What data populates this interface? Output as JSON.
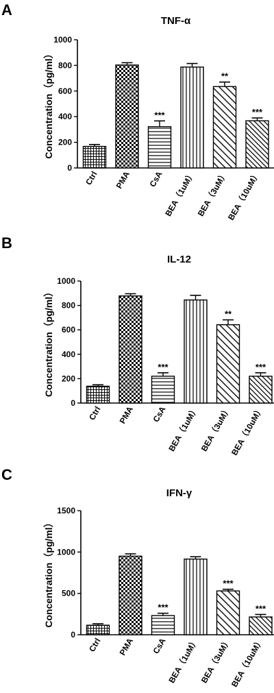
{
  "chart_data": [
    {
      "type": "bar",
      "panel_label": "A",
      "title": "TNF-α",
      "ylabel": "Concentration（pg/ml）",
      "categories": [
        "Ctrl",
        "PMA",
        "CsA",
        "BEA（1uM）",
        "BEA（3uM）",
        "BEA（10uM）"
      ],
      "values": [
        168,
        803,
        322,
        787,
        635,
        368
      ],
      "errors": [
        15,
        18,
        45,
        28,
        35,
        22
      ],
      "significance": [
        "",
        "",
        "***",
        "",
        "**",
        "***"
      ],
      "ylim": [
        0,
        1000
      ],
      "yticks": [
        0,
        200,
        400,
        600,
        800,
        1000
      ],
      "patterns": [
        "grid",
        "checker",
        "hlines",
        "vlines",
        "diag",
        "diagdense"
      ],
      "grid": false
    },
    {
      "type": "bar",
      "panel_label": "B",
      "title": "IL-12",
      "ylabel": "Concentration（pg/ml）",
      "categories": [
        "Ctrl",
        "PMA",
        "CsA",
        "BEA（1uM）",
        "BEA（3uM）",
        "BEA（10uM）"
      ],
      "values": [
        138,
        878,
        220,
        845,
        642,
        220
      ],
      "errors": [
        12,
        18,
        28,
        38,
        40,
        28
      ],
      "significance": [
        "",
        "",
        "***",
        "",
        "**",
        "***"
      ],
      "ylim": [
        0,
        1000
      ],
      "yticks": [
        0,
        200,
        400,
        600,
        800,
        1000
      ],
      "patterns": [
        "grid",
        "checker",
        "hlines",
        "vlines",
        "diag",
        "diagdense"
      ],
      "grid": false
    },
    {
      "type": "bar",
      "panel_label": "C",
      "title": "IFN-γ",
      "ylabel": "Concentration（pg/ml）",
      "categories": [
        "Ctrl",
        "PMA",
        "CsA",
        "BEA（1uM）",
        "BEA（3uM）",
        "BEA（10uM）"
      ],
      "values": [
        115,
        950,
        232,
        915,
        530,
        215
      ],
      "errors": [
        18,
        28,
        28,
        28,
        20,
        30
      ],
      "significance": [
        "",
        "",
        "***",
        "",
        "***",
        "***"
      ],
      "ylim": [
        0,
        1500
      ],
      "yticks": [
        0,
        500,
        1000,
        1500
      ],
      "patterns": [
        "grid",
        "checker",
        "hlines",
        "vlines",
        "diag",
        "diagdense"
      ],
      "grid": false
    }
  ]
}
